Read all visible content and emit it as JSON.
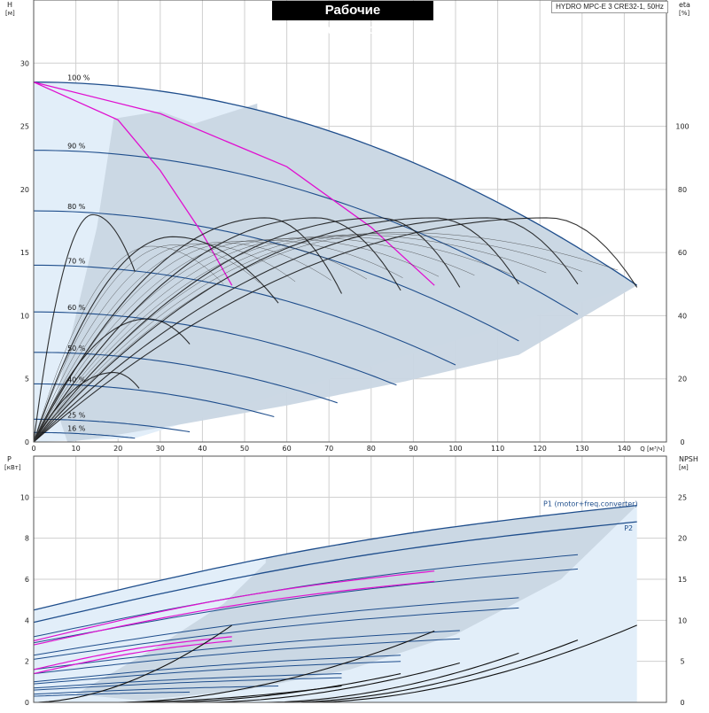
{
  "header": {
    "title": "Рабочие характеристики",
    "model": "HYDRO MPC-E 3 CRE32-1, 50Hz"
  },
  "chart_data": [
    {
      "type": "line",
      "name": "head",
      "axis_left_label": "H",
      "axis_left_unit": "[м]",
      "axis_right_label": "eta",
      "axis_right_unit": "[%]",
      "xlabel": "Q [м³/ч]",
      "xlim": [
        0,
        150
      ],
      "ylim": [
        0,
        35
      ],
      "right_ylim": [
        0,
        140
      ],
      "x_ticks": [
        0,
        10,
        20,
        30,
        40,
        50,
        60,
        70,
        80,
        90,
        100,
        110,
        120,
        130,
        140
      ],
      "y_ticks": [
        0,
        5,
        10,
        15,
        20,
        25,
        30
      ],
      "right_ticks": [
        0,
        20,
        40,
        60,
        80,
        100
      ],
      "grid": true,
      "colors": {
        "area_dark": "#c9d6e3",
        "area_light": "#e2eef9",
        "blue": "#1f4e8c",
        "magenta": "#e010d0",
        "black": "#111111"
      },
      "speed_curves": [
        {
          "label": "100 %",
          "h0": 28.5,
          "qmax": 143,
          "h_end": 12.4
        },
        {
          "label": "90 %",
          "h0": 23.1,
          "qmax": 129,
          "h_end": 10.1
        },
        {
          "label": "80 %",
          "h0": 18.3,
          "qmax": 115,
          "h_end": 8.0
        },
        {
          "label": "70 %",
          "h0": 14.0,
          "qmax": 100,
          "h_end": 6.1
        },
        {
          "label": "60 %",
          "h0": 10.3,
          "qmax": 86,
          "h_end": 4.5
        },
        {
          "label": "50 %",
          "h0": 7.1,
          "qmax": 72,
          "h_end": 3.1
        },
        {
          "label": "40 %",
          "h0": 4.6,
          "qmax": 57,
          "h_end": 2.0
        },
        {
          "label": "25 %",
          "h0": 1.8,
          "qmax": 37,
          "h_end": 0.8
        },
        {
          "label": "16 %",
          "h0": 0.75,
          "qmax": 24,
          "h_end": 0.3
        }
      ],
      "magenta_curves": [
        {
          "points": [
            [
              0,
              28.5
            ],
            [
              20,
              25.5
            ],
            [
              30,
              21.5
            ],
            [
              40,
              16.5
            ],
            [
              47,
              12.4
            ]
          ]
        },
        {
          "points": [
            [
              0,
              28.5
            ],
            [
              30,
              26.0
            ],
            [
              60,
              21.8
            ],
            [
              80,
              17.0
            ],
            [
              95,
              12.4
            ]
          ]
        }
      ],
      "efficiency_curves": [
        {
          "peak_q": 14,
          "peak_eta": 72,
          "end_q": 24,
          "end_eta": 54
        },
        {
          "peak_q": 19,
          "peak_eta": 22,
          "end_q": 25,
          "end_eta": 17
        },
        {
          "peak_q": 27,
          "peak_eta": 39,
          "end_q": 37,
          "end_eta": 31
        },
        {
          "peak_q": 33,
          "peak_eta": 65,
          "end_q": 58,
          "end_eta": 44
        },
        {
          "peak_q": 55,
          "peak_eta": 71,
          "end_q": 73,
          "end_eta": 47
        },
        {
          "peak_q": 67,
          "peak_eta": 71,
          "end_q": 87,
          "end_eta": 48
        },
        {
          "peak_q": 82,
          "peak_eta": 71,
          "end_q": 101,
          "end_eta": 49
        },
        {
          "peak_q": 95,
          "peak_eta": 71,
          "end_q": 115,
          "end_eta": 50
        },
        {
          "peak_q": 108,
          "peak_eta": 71,
          "end_q": 129,
          "end_eta": 50
        },
        {
          "peak_q": 122,
          "peak_eta": 71,
          "end_q": 143,
          "end_eta": 49
        }
      ]
    },
    {
      "type": "line",
      "name": "power",
      "axis_left_label": "P",
      "axis_left_unit": "[кВт]",
      "axis_right_label": "NPSH",
      "axis_right_unit": "[м]",
      "xlim": [
        0,
        150
      ],
      "ylim": [
        0,
        12
      ],
      "right_ylim": [
        0,
        30
      ],
      "y_ticks": [
        0,
        2,
        4,
        6,
        8,
        10
      ],
      "right_ticks": [
        0,
        5,
        10,
        15,
        20,
        25
      ],
      "grid": true,
      "series": [
        {
          "name": "P1 (motor+freq.converter)",
          "y0": 4.5,
          "qmax": 143,
          "y_end": 9.6
        },
        {
          "name": "P2",
          "y0": 3.9,
          "qmax": 143,
          "y_end": 8.8
        }
      ],
      "speed_power_curves": [
        {
          "y0": 3.2,
          "qmax": 129,
          "y_end": 7.2
        },
        {
          "y0": 2.9,
          "qmax": 129,
          "y_end": 6.5
        },
        {
          "y0": 2.3,
          "qmax": 115,
          "y_end": 5.1
        },
        {
          "y0": 2.1,
          "qmax": 115,
          "y_end": 4.6
        },
        {
          "y0": 1.6,
          "qmax": 101,
          "y_end": 3.5
        },
        {
          "y0": 1.4,
          "qmax": 101,
          "y_end": 3.1
        },
        {
          "y0": 1.0,
          "qmax": 87,
          "y_end": 2.3
        },
        {
          "y0": 0.9,
          "qmax": 87,
          "y_end": 2.0
        },
        {
          "y0": 0.7,
          "qmax": 73,
          "y_end": 1.4
        },
        {
          "y0": 0.6,
          "qmax": 73,
          "y_end": 1.2
        },
        {
          "y0": 0.4,
          "qmax": 58,
          "y_end": 0.8
        },
        {
          "y0": 0.3,
          "qmax": 37,
          "y_end": 0.5
        }
      ],
      "magenta_power_curves": [
        {
          "y0": 3.0,
          "qmax": 95,
          "y_end": 6.4
        },
        {
          "y0": 2.8,
          "qmax": 95,
          "y_end": 5.9
        },
        {
          "y0": 1.6,
          "qmax": 47,
          "y_end": 3.2
        },
        {
          "y0": 1.4,
          "qmax": 47,
          "y_end": 3.0
        }
      ],
      "npsh_curves": [
        {
          "q_start": 0,
          "q_end": 47,
          "npsh_end": 9.4
        },
        {
          "q_start": 20,
          "q_end": 95,
          "npsh_end": 8.7
        },
        {
          "q_start": 40,
          "q_end": 101,
          "npsh_end": 4.8
        },
        {
          "q_start": 55,
          "q_end": 115,
          "npsh_end": 6.0
        },
        {
          "q_start": 60,
          "q_end": 129,
          "npsh_end": 7.6
        },
        {
          "q_start": 65,
          "q_end": 143,
          "npsh_end": 9.4
        },
        {
          "q_start": 30,
          "q_end": 87,
          "npsh_end": 3.5
        },
        {
          "q_start": 20,
          "q_end": 73,
          "npsh_end": 2.0
        }
      ]
    }
  ]
}
